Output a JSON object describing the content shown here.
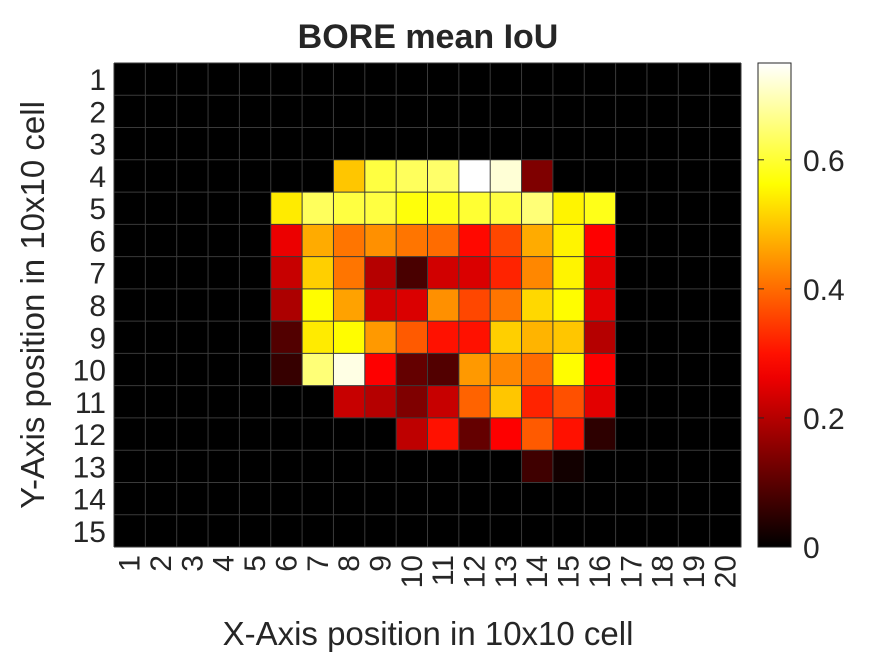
{
  "chart_data": {
    "type": "heatmap",
    "title": "BORE mean IoU",
    "xlabel": "X-Axis position in 10x10 cell",
    "ylabel": "Y-Axis position in 10x10 cell",
    "x_ticks": [
      "1",
      "2",
      "3",
      "4",
      "5",
      "6",
      "7",
      "8",
      "9",
      "10",
      "11",
      "12",
      "13",
      "14",
      "15",
      "16",
      "17",
      "18",
      "19",
      "20"
    ],
    "y_ticks": [
      "1",
      "2",
      "3",
      "4",
      "5",
      "6",
      "7",
      "8",
      "9",
      "10",
      "11",
      "12",
      "13",
      "14",
      "15"
    ],
    "colormap": "hot",
    "clim": [
      0,
      0.75
    ],
    "colorbar_ticks": [
      0,
      0.2,
      0.4,
      0.6
    ],
    "colorbar_tick_labels": [
      "0",
      "0.2",
      "0.4",
      "0.6"
    ],
    "grid": true,
    "values": [
      [
        0,
        0,
        0,
        0,
        0,
        0,
        0,
        0,
        0,
        0,
        0,
        0,
        0,
        0,
        0,
        0,
        0,
        0,
        0,
        0
      ],
      [
        0,
        0,
        0,
        0,
        0,
        0,
        0,
        0,
        0,
        0,
        0,
        0,
        0,
        0,
        0,
        0,
        0,
        0,
        0,
        0
      ],
      [
        0,
        0,
        0,
        0,
        0,
        0,
        0,
        0,
        0,
        0,
        0,
        0,
        0,
        0,
        0,
        0,
        0,
        0,
        0,
        0
      ],
      [
        0,
        0,
        0,
        0,
        0,
        0,
        0,
        0.5,
        0.61,
        0.63,
        0.64,
        0.75,
        0.72,
        0.14,
        0,
        0,
        0,
        0,
        0,
        0
      ],
      [
        0,
        0,
        0,
        0,
        0,
        0.54,
        0.63,
        0.61,
        0.61,
        0.57,
        0.58,
        0.6,
        0.61,
        0.65,
        0.55,
        0.58,
        0,
        0,
        0,
        0
      ],
      [
        0,
        0,
        0,
        0,
        0,
        0.26,
        0.47,
        0.41,
        0.44,
        0.41,
        0.4,
        0.29,
        0.36,
        0.47,
        0.55,
        0.28,
        0,
        0,
        0,
        0
      ],
      [
        0,
        0,
        0,
        0,
        0,
        0.22,
        0.51,
        0.41,
        0.2,
        0.08,
        0.23,
        0.24,
        0.32,
        0.43,
        0.55,
        0.25,
        0,
        0,
        0,
        0
      ],
      [
        0,
        0,
        0,
        0,
        0,
        0.19,
        0.56,
        0.46,
        0.23,
        0.24,
        0.44,
        0.36,
        0.41,
        0.52,
        0.56,
        0.25,
        0,
        0,
        0,
        0
      ],
      [
        0,
        0,
        0,
        0,
        0,
        0.09,
        0.54,
        0.56,
        0.45,
        0.38,
        0.3,
        0.3,
        0.51,
        0.48,
        0.5,
        0.2,
        0,
        0,
        0,
        0
      ],
      [
        0,
        0,
        0,
        0,
        0,
        0.06,
        0.65,
        0.73,
        0.28,
        0.11,
        0.09,
        0.45,
        0.43,
        0.4,
        0.56,
        0.28,
        0,
        0,
        0,
        0
      ],
      [
        0,
        0,
        0,
        0,
        0,
        0,
        0,
        0.22,
        0.2,
        0.14,
        0.22,
        0.39,
        0.5,
        0.32,
        0.37,
        0.25,
        0,
        0,
        0,
        0
      ],
      [
        0,
        0,
        0,
        0,
        0,
        0,
        0,
        0,
        0,
        0.21,
        0.3,
        0.11,
        0.28,
        0.38,
        0.3,
        0.05,
        0,
        0,
        0,
        0
      ],
      [
        0,
        0,
        0,
        0,
        0,
        0,
        0,
        0,
        0,
        0,
        0,
        0,
        0,
        0.07,
        0.02,
        0,
        0,
        0,
        0,
        0
      ],
      [
        0,
        0,
        0,
        0,
        0,
        0,
        0,
        0,
        0,
        0,
        0,
        0,
        0,
        0,
        0,
        0,
        0,
        0,
        0,
        0
      ],
      [
        0,
        0,
        0,
        0,
        0,
        0,
        0,
        0,
        0,
        0,
        0,
        0,
        0,
        0,
        0,
        0,
        0,
        0,
        0,
        0
      ]
    ]
  }
}
